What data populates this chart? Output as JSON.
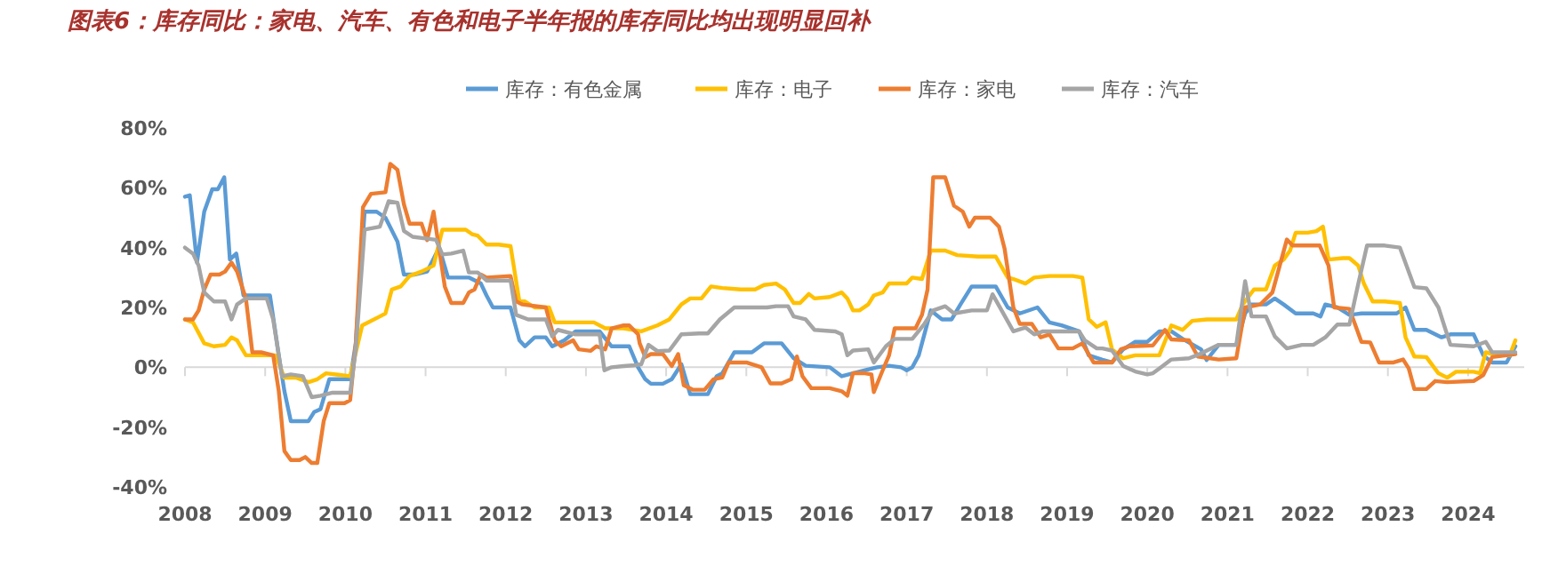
{
  "chart_data": {
    "type": "line",
    "title": "图表6：库存同比：家电、汽车、有色和电子半年报的库存同比均出现明显回补",
    "xlim": [
      2008,
      2024.7
    ],
    "xticks": [
      2008,
      2009,
      2010,
      2011,
      2012,
      2013,
      2014,
      2015,
      2016,
      2017,
      2018,
      2019,
      2020,
      2021,
      2022,
      2023,
      2024
    ],
    "ylim": [
      -40,
      80
    ],
    "yticks": [
      {
        "value": -40,
        "label": "-40%"
      },
      {
        "value": -20,
        "label": "-20%"
      },
      {
        "value": 0,
        "label": "0%"
      },
      {
        "value": 20,
        "label": "20%"
      },
      {
        "value": 40,
        "label": "40%"
      },
      {
        "value": 60,
        "label": "60%"
      },
      {
        "value": 80,
        "label": "80%"
      }
    ],
    "legend": "top",
    "series": [
      {
        "name": "库存：有色金属",
        "color": "#5b9bd5",
        "x": [
          2008.0,
          2008.06,
          2008.15,
          2008.24,
          2008.34,
          2008.41,
          2008.49,
          2008.56,
          2008.64,
          2008.73,
          2008.8,
          2009.06,
          2009.17,
          2009.24,
          2009.32,
          2009.47,
          2009.54,
          2009.61,
          2009.69,
          2009.8,
          2010.06,
          2010.13,
          2010.24,
          2010.39,
          2010.5,
          2010.65,
          2010.73,
          2010.87,
          2011.02,
          2011.17,
          2011.28,
          2011.54,
          2011.69,
          2011.76,
          2011.84,
          2012.06,
          2012.17,
          2012.24,
          2012.36,
          2012.5,
          2012.58,
          2012.73,
          2012.87,
          2013.17,
          2013.32,
          2013.54,
          2013.65,
          2013.74,
          2013.81,
          2013.96,
          2014.07,
          2014.19,
          2014.3,
          2014.52,
          2014.63,
          2014.7,
          2014.85,
          2015.07,
          2015.22,
          2015.44,
          2015.59,
          2015.74,
          2016.04,
          2016.19,
          2016.33,
          2016.48,
          2016.63,
          2016.78,
          2016.93,
          2017.0,
          2017.07,
          2017.15,
          2017.3,
          2017.44,
          2017.56,
          2017.67,
          2017.81,
          2018.04,
          2018.11,
          2018.26,
          2018.41,
          2018.63,
          2018.78,
          2018.93,
          2019.15,
          2019.27,
          2019.44,
          2019.56,
          2019.7,
          2019.85,
          2020.0,
          2020.15,
          2020.3,
          2020.44,
          2020.67,
          2020.74,
          2020.89,
          2021.11,
          2021.22,
          2021.3,
          2021.48,
          2021.59,
          2021.7,
          2021.85,
          2022.07,
          2022.16,
          2022.22,
          2022.37,
          2022.52,
          2022.67,
          2022.81,
          2022.96,
          2023.11,
          2023.22,
          2023.33,
          2023.48,
          2023.67,
          2023.78,
          2024.07,
          2024.19,
          2024.3,
          2024.48,
          2024.59
        ],
        "values": [
          57,
          57.5,
          35,
          52,
          59.5,
          59.5,
          63.5,
          36,
          38,
          24,
          24,
          24,
          4,
          -8,
          -18,
          -18,
          -18,
          -15,
          -14,
          -4,
          -4,
          8,
          52,
          52,
          50,
          42,
          31,
          31,
          32,
          40,
          30,
          30,
          28,
          24,
          20,
          20,
          9,
          7,
          10,
          10,
          7,
          9,
          12,
          12,
          7,
          7,
          0,
          -4,
          -5.5,
          -5.5,
          -4,
          1,
          -9,
          -9,
          -3,
          -2,
          5,
          5,
          8,
          8,
          3,
          0.5,
          0,
          -3,
          -2,
          -1,
          0,
          0.5,
          0,
          -1,
          0,
          4,
          19,
          16,
          16,
          21,
          27,
          27,
          27,
          20,
          18,
          20,
          15,
          14,
          12,
          4,
          2.5,
          1.6,
          6,
          8.5,
          8.5,
          12,
          12,
          9.5,
          6,
          2.4,
          7.5,
          7.5,
          18,
          21,
          21,
          23,
          21,
          18,
          18,
          17,
          21,
          20,
          17.5,
          18,
          18,
          18,
          18,
          20,
          12.5,
          12.5,
          10,
          11,
          11,
          4,
          1.6,
          1.6,
          7
        ]
      },
      {
        "name": "库存：电子",
        "color": "#ffc000",
        "x": [
          2008.0,
          2008.1,
          2008.24,
          2008.36,
          2008.5,
          2008.58,
          2008.65,
          2008.76,
          2008.87,
          2009.13,
          2009.24,
          2009.39,
          2009.54,
          2009.65,
          2009.76,
          2009.91,
          2010.06,
          2010.21,
          2010.43,
          2010.5,
          2010.58,
          2010.69,
          2010.8,
          2010.95,
          2011.1,
          2011.21,
          2011.39,
          2011.5,
          2011.58,
          2011.65,
          2011.76,
          2011.91,
          2012.06,
          2012.17,
          2012.24,
          2012.36,
          2012.54,
          2012.61,
          2012.87,
          2013.1,
          2013.24,
          2013.47,
          2013.69,
          2013.89,
          2014.04,
          2014.19,
          2014.3,
          2014.44,
          2014.56,
          2014.7,
          2014.93,
          2015.11,
          2015.22,
          2015.37,
          2015.48,
          2015.59,
          2015.67,
          2015.78,
          2015.85,
          2016.04,
          2016.19,
          2016.26,
          2016.33,
          2016.41,
          2016.52,
          2016.59,
          2016.7,
          2016.78,
          2017.0,
          2017.07,
          2017.19,
          2017.3,
          2017.48,
          2017.63,
          2017.89,
          2018.11,
          2018.26,
          2018.33,
          2018.48,
          2018.59,
          2018.78,
          2019.07,
          2019.19,
          2019.27,
          2019.37,
          2019.48,
          2019.56,
          2019.7,
          2019.85,
          2020.15,
          2020.3,
          2020.44,
          2020.56,
          2020.74,
          2021.11,
          2021.19,
          2021.33,
          2021.48,
          2021.59,
          2021.7,
          2021.78,
          2021.85,
          2022.0,
          2022.11,
          2022.19,
          2022.26,
          2022.44,
          2022.52,
          2022.63,
          2022.7,
          2022.81,
          2022.96,
          2023.15,
          2023.22,
          2023.33,
          2023.48,
          2023.63,
          2023.74,
          2023.85,
          2024.07,
          2024.15,
          2024.22,
          2024.37,
          2024.52,
          2024.59
        ],
        "values": [
          16,
          15,
          8,
          7,
          7.5,
          10,
          9,
          4,
          4,
          4,
          -3.5,
          -3.5,
          -5,
          -4,
          -2,
          -2.5,
          -3,
          14,
          17,
          18,
          26,
          27,
          30.5,
          32,
          34,
          46,
          46,
          46,
          44.5,
          44,
          41,
          41,
          40.5,
          22,
          22,
          20,
          20,
          15,
          15,
          15,
          13,
          13,
          12,
          14,
          16,
          21,
          23,
          23,
          27,
          26.5,
          26,
          26,
          27.5,
          28,
          26,
          21.5,
          21.5,
          24.5,
          23,
          23.5,
          25,
          23,
          19,
          19,
          21,
          24,
          25,
          28,
          28,
          30,
          29.5,
          39,
          39,
          37.5,
          37,
          37,
          30,
          29.5,
          28,
          30,
          30.5,
          30.5,
          30,
          16,
          13.5,
          15,
          6,
          3,
          4,
          4,
          14,
          12.5,
          15.5,
          16,
          16,
          21,
          26,
          26,
          34,
          36,
          39,
          45,
          45,
          45.5,
          47,
          36,
          36.5,
          36.5,
          34,
          28,
          22,
          22,
          21.5,
          10,
          3.6,
          3.4,
          -2,
          -3.5,
          -1.5,
          -1.5,
          -2,
          5,
          4,
          4,
          9
        ]
      },
      {
        "name": "库存：家电",
        "color": "#ed7d31",
        "x": [
          2008.0,
          2008.1,
          2008.17,
          2008.24,
          2008.32,
          2008.43,
          2008.5,
          2008.58,
          2008.65,
          2008.76,
          2008.84,
          2008.95,
          2009.1,
          2009.17,
          2009.24,
          2009.32,
          2009.43,
          2009.5,
          2009.58,
          2009.65,
          2009.73,
          2009.8,
          2009.99,
          2010.06,
          2010.13,
          2010.22,
          2010.32,
          2010.5,
          2010.56,
          2010.65,
          2010.73,
          2010.8,
          2010.95,
          2011.02,
          2011.1,
          2011.24,
          2011.32,
          2011.47,
          2011.54,
          2011.61,
          2011.69,
          2011.76,
          2012.06,
          2012.13,
          2012.21,
          2012.5,
          2012.61,
          2012.69,
          2012.84,
          2012.91,
          2013.06,
          2013.13,
          2013.24,
          2013.32,
          2013.47,
          2013.54,
          2013.65,
          2013.67,
          2013.74,
          2013.81,
          2013.96,
          2014.07,
          2014.15,
          2014.22,
          2014.33,
          2014.48,
          2014.59,
          2014.7,
          2014.78,
          2015.0,
          2015.19,
          2015.3,
          2015.44,
          2015.56,
          2015.63,
          2015.7,
          2015.81,
          2016.04,
          2016.19,
          2016.26,
          2016.33,
          2016.48,
          2016.56,
          2016.59,
          2016.7,
          2016.78,
          2016.85,
          2017.0,
          2017.11,
          2017.19,
          2017.26,
          2017.33,
          2017.48,
          2017.59,
          2017.7,
          2017.78,
          2017.85,
          2018.04,
          2018.15,
          2018.22,
          2018.33,
          2018.41,
          2018.56,
          2018.67,
          2018.78,
          2018.89,
          2019.07,
          2019.19,
          2019.33,
          2019.44,
          2019.56,
          2019.67,
          2019.78,
          2020.07,
          2020.22,
          2020.3,
          2020.52,
          2020.63,
          2020.89,
          2021.11,
          2021.22,
          2021.41,
          2021.56,
          2021.74,
          2021.81,
          2022.15,
          2022.26,
          2022.33,
          2022.52,
          2022.67,
          2022.78,
          2022.89,
          2023.07,
          2023.19,
          2023.26,
          2023.33,
          2023.48,
          2023.59,
          2023.74,
          2024.07,
          2024.19,
          2024.3,
          2024.59
        ],
        "values": [
          16,
          16,
          19,
          26,
          31,
          31,
          32,
          35,
          32,
          23,
          5,
          5,
          4,
          -8,
          -28,
          -31,
          -31,
          -30,
          -32,
          -32,
          -18,
          -12,
          -12,
          -11,
          8,
          53.5,
          58,
          58.5,
          68,
          66,
          54.5,
          48,
          48,
          42.5,
          52,
          27,
          21.5,
          21.5,
          25,
          26,
          31,
          30,
          30.5,
          22,
          21,
          20,
          9,
          7,
          9,
          6,
          5.5,
          7,
          6,
          13,
          14,
          14,
          11,
          8,
          3.4,
          4.4,
          4.4,
          0.4,
          4.4,
          -6,
          -7.5,
          -7.5,
          -4,
          -3.4,
          1.6,
          1.6,
          0,
          -5.4,
          -5.4,
          -4,
          3.6,
          -3,
          -7,
          -7,
          -8,
          -9.5,
          -2,
          -2,
          -2.4,
          -8.3,
          -1,
          4,
          13,
          13,
          13,
          17.5,
          26,
          63.5,
          63.5,
          54,
          52,
          47,
          50,
          50,
          47,
          39.7,
          20,
          14.5,
          14.5,
          10,
          11,
          6.3,
          6.3,
          8,
          1.6,
          1.6,
          1.6,
          6,
          7,
          7.3,
          12.5,
          9.3,
          9,
          3.6,
          2.6,
          3,
          20,
          21,
          25,
          42.7,
          40.7,
          40.7,
          34,
          20,
          19.5,
          8.5,
          8.3,
          1.6,
          1.6,
          2.6,
          -0.4,
          -7.3,
          -7.3,
          -4.6,
          -5,
          -4.6,
          -2.6,
          3.4,
          4.4
        ]
      },
      {
        "name": "库存：汽车",
        "color": "#a5a5a5",
        "x": [
          2008.0,
          2008.1,
          2008.17,
          2008.24,
          2008.36,
          2008.5,
          2008.58,
          2008.65,
          2008.76,
          2009.02,
          2009.1,
          2009.21,
          2009.32,
          2009.47,
          2009.58,
          2009.69,
          2009.84,
          2010.06,
          2010.13,
          2010.24,
          2010.43,
          2010.54,
          2010.65,
          2010.73,
          2010.84,
          2011.02,
          2011.13,
          2011.21,
          2011.32,
          2011.47,
          2011.54,
          2011.65,
          2011.76,
          2012.06,
          2012.13,
          2012.28,
          2012.5,
          2012.58,
          2012.65,
          2012.87,
          2013.17,
          2013.23,
          2013.32,
          2013.47,
          2013.58,
          2013.69,
          2013.78,
          2013.89,
          2014.04,
          2014.19,
          2014.41,
          2014.52,
          2014.67,
          2014.85,
          2015.15,
          2015.26,
          2015.37,
          2015.52,
          2015.59,
          2015.74,
          2015.85,
          2016.11,
          2016.19,
          2016.26,
          2016.33,
          2016.52,
          2016.59,
          2016.74,
          2016.85,
          2017.07,
          2017.22,
          2017.33,
          2017.48,
          2017.59,
          2017.81,
          2018.0,
          2018.07,
          2018.33,
          2018.48,
          2018.59,
          2018.7,
          2018.93,
          2019.15,
          2019.22,
          2019.37,
          2019.44,
          2019.56,
          2019.7,
          2019.85,
          2020.0,
          2020.07,
          2020.15,
          2020.3,
          2020.52,
          2020.67,
          2020.89,
          2021.11,
          2021.22,
          2021.3,
          2021.48,
          2021.59,
          2021.74,
          2021.93,
          2022.07,
          2022.22,
          2022.37,
          2022.52,
          2022.63,
          2022.74,
          2022.96,
          2023.15,
          2023.33,
          2023.48,
          2023.63,
          2023.78,
          2024.07,
          2024.22,
          2024.3,
          2024.59
        ],
        "values": [
          40,
          38,
          34,
          25,
          22,
          22,
          16,
          21,
          23,
          23,
          16,
          -3,
          -2.4,
          -3,
          -10,
          -9.5,
          -8.5,
          -8.5,
          6,
          46,
          47,
          55.5,
          55,
          45.6,
          43.6,
          43,
          42.6,
          37.7,
          38,
          39,
          31.7,
          31.7,
          29,
          29,
          17.5,
          16,
          16,
          10.3,
          12.5,
          11,
          11,
          -1,
          0,
          0.4,
          0.6,
          1,
          7.5,
          5.4,
          5.6,
          11,
          11.3,
          11.3,
          16,
          20,
          20,
          20,
          20.4,
          20.4,
          17,
          16,
          12.5,
          12,
          11,
          4,
          5.6,
          6,
          1.6,
          7,
          9.5,
          9.5,
          14.5,
          19,
          20.4,
          18,
          19,
          19,
          24.4,
          12,
          13.3,
          11,
          12,
          12,
          12,
          9,
          6.3,
          6.3,
          5.6,
          0.4,
          -1.4,
          -2.4,
          -2,
          -0.4,
          2.6,
          3,
          4.6,
          7.5,
          7.5,
          28.8,
          17,
          17,
          10.3,
          6.3,
          7.5,
          7.5,
          10,
          14.3,
          14.3,
          27.8,
          40.7,
          40.7,
          40,
          26.8,
          26.4,
          20,
          7.5,
          7,
          8.5,
          5,
          5
        ]
      }
    ]
  }
}
